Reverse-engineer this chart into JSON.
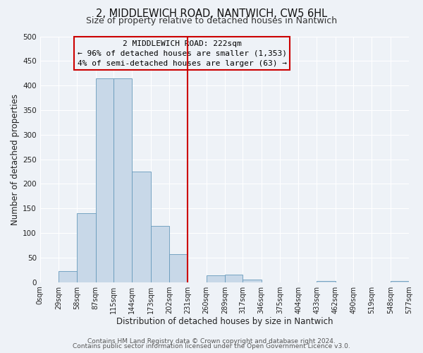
{
  "title": "2, MIDDLEWICH ROAD, NANTWICH, CW5 6HL",
  "subtitle": "Size of property relative to detached houses in Nantwich",
  "xlabel": "Distribution of detached houses by size in Nantwich",
  "ylabel": "Number of detached properties",
  "bin_edges": [
    0,
    29,
    58,
    87,
    115,
    144,
    173,
    202,
    231,
    260,
    289,
    317,
    346,
    375,
    404,
    433,
    462,
    490,
    519,
    548,
    577
  ],
  "bar_heights": [
    0,
    22,
    140,
    415,
    415,
    225,
    115,
    57,
    0,
    14,
    15,
    5,
    0,
    0,
    0,
    2,
    0,
    0,
    0,
    2
  ],
  "bar_color": "#c8d8e8",
  "bar_edge_color": "#6699bb",
  "vline_x": 231,
  "vline_color": "#cc0000",
  "annotation_title": "2 MIDDLEWICH ROAD: 222sqm",
  "annotation_line1": "← 96% of detached houses are smaller (1,353)",
  "annotation_line2": "4% of semi-detached houses are larger (63) →",
  "annotation_box_color": "#cc0000",
  "ylim": [
    0,
    500
  ],
  "yticks": [
    0,
    50,
    100,
    150,
    200,
    250,
    300,
    350,
    400,
    450,
    500
  ],
  "tick_labels": [
    "0sqm",
    "29sqm",
    "58sqm",
    "87sqm",
    "115sqm",
    "144sqm",
    "173sqm",
    "202sqm",
    "231sqm",
    "260sqm",
    "289sqm",
    "317sqm",
    "346sqm",
    "375sqm",
    "404sqm",
    "433sqm",
    "462sqm",
    "490sqm",
    "519sqm",
    "548sqm",
    "577sqm"
  ],
  "footer1": "Contains HM Land Registry data © Crown copyright and database right 2024.",
  "footer2": "Contains public sector information licensed under the Open Government Licence v3.0.",
  "bg_color": "#eef2f7",
  "grid_color": "#ffffff",
  "title_fontsize": 10.5,
  "subtitle_fontsize": 9,
  "axis_label_fontsize": 8.5,
  "tick_fontsize": 7,
  "footer_fontsize": 6.5,
  "ann_fontsize": 8
}
